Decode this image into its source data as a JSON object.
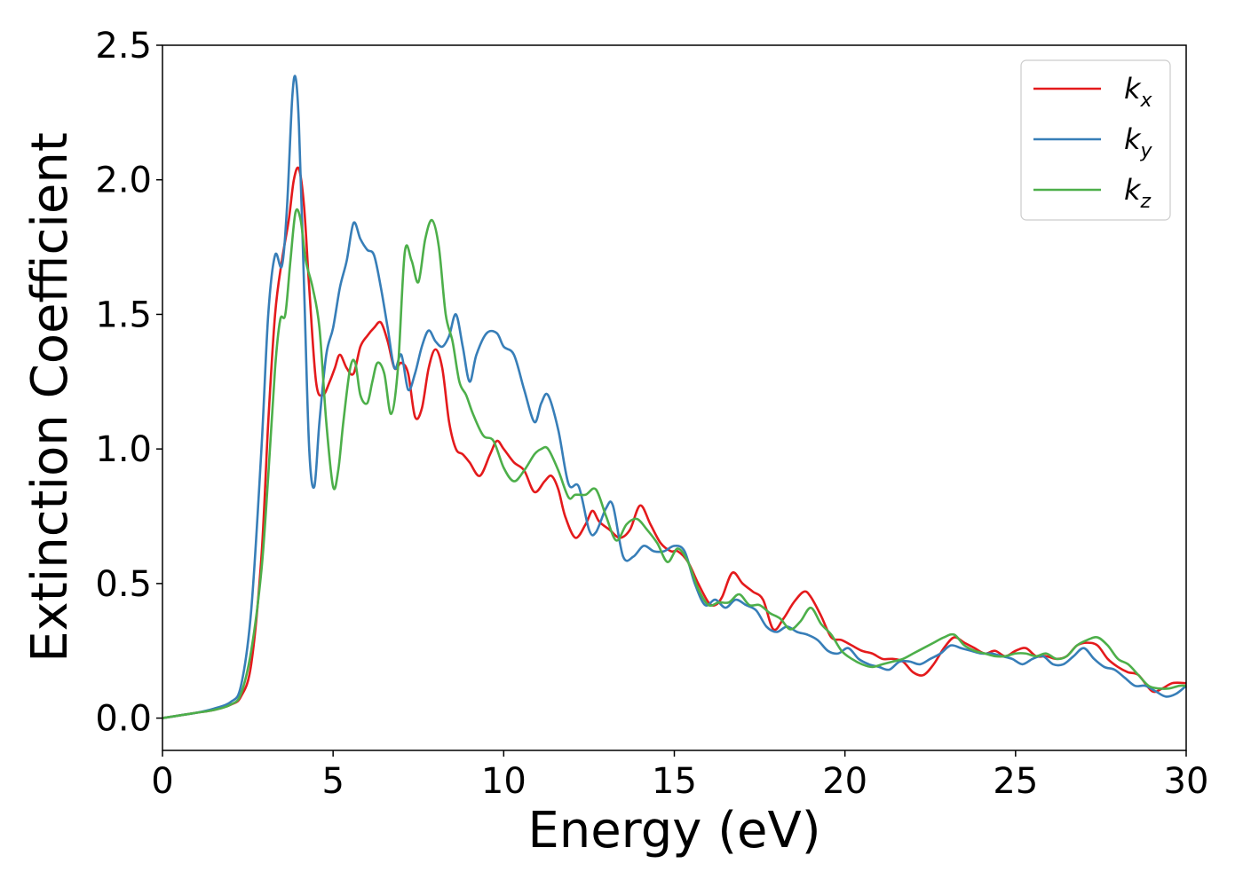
{
  "chart_data": {
    "type": "line",
    "xlabel": "Energy (eV)",
    "ylabel": "Extinction Coefficient",
    "xlim": [
      0,
      30
    ],
    "ylim": [
      -0.12,
      2.5
    ],
    "xticks": [
      0,
      5,
      10,
      15,
      20,
      25,
      30
    ],
    "yticks": [
      0.0,
      0.5,
      1.0,
      1.5,
      2.0,
      2.5
    ],
    "xtick_labels": [
      "0",
      "5",
      "10",
      "15",
      "20",
      "25",
      "30"
    ],
    "ytick_labels": [
      "0.0",
      "0.5",
      "1.0",
      "1.5",
      "2.0",
      "2.5"
    ],
    "grid": false,
    "legend_position": "top-right",
    "series": [
      {
        "name": "kx",
        "label_main": "k",
        "label_sub": "x",
        "color": "#e41a1c",
        "x": [
          0,
          0.5,
          1,
          1.5,
          2,
          2.3,
          2.6,
          2.9,
          3.1,
          3.3,
          3.5,
          3.7,
          3.85,
          4.0,
          4.15,
          4.3,
          4.5,
          4.7,
          4.9,
          5.05,
          5.2,
          5.4,
          5.6,
          5.8,
          6.0,
          6.2,
          6.4,
          6.6,
          6.8,
          7.0,
          7.2,
          7.4,
          7.6,
          7.8,
          8.0,
          8.2,
          8.4,
          8.6,
          8.8,
          9.0,
          9.3,
          9.6,
          9.8,
          10.0,
          10.3,
          10.6,
          10.9,
          11.2,
          11.4,
          11.6,
          11.8,
          12.1,
          12.4,
          12.6,
          12.8,
          13.1,
          13.4,
          13.7,
          14.0,
          14.3,
          14.6,
          14.9,
          15.1,
          15.4,
          15.7,
          16.0,
          16.2,
          16.4,
          16.7,
          17.0,
          17.3,
          17.6,
          17.9,
          18.2,
          18.5,
          18.8,
          19.0,
          19.3,
          19.6,
          19.9,
          20.2,
          20.5,
          20.8,
          21.1,
          21.4,
          21.7,
          22.0,
          22.3,
          22.6,
          22.9,
          23.2,
          23.5,
          23.8,
          24.1,
          24.4,
          24.7,
          25.0,
          25.3,
          25.6,
          25.9,
          26.2,
          26.5,
          26.8,
          27.1,
          27.4,
          27.7,
          28.0,
          28.3,
          28.6,
          29.0,
          29.3,
          29.6,
          30.0
        ],
        "y": [
          0.0,
          0.01,
          0.02,
          0.03,
          0.05,
          0.08,
          0.2,
          0.6,
          1.1,
          1.5,
          1.7,
          1.85,
          2.0,
          2.04,
          1.9,
          1.6,
          1.25,
          1.2,
          1.25,
          1.3,
          1.35,
          1.3,
          1.28,
          1.38,
          1.42,
          1.45,
          1.47,
          1.4,
          1.3,
          1.32,
          1.28,
          1.12,
          1.15,
          1.3,
          1.37,
          1.3,
          1.1,
          1.0,
          0.98,
          0.95,
          0.9,
          0.98,
          1.03,
          1.0,
          0.95,
          0.92,
          0.84,
          0.88,
          0.9,
          0.85,
          0.75,
          0.67,
          0.72,
          0.77,
          0.73,
          0.7,
          0.67,
          0.7,
          0.79,
          0.72,
          0.65,
          0.62,
          0.62,
          0.58,
          0.5,
          0.43,
          0.42,
          0.45,
          0.54,
          0.5,
          0.47,
          0.44,
          0.33,
          0.37,
          0.43,
          0.47,
          0.45,
          0.38,
          0.3,
          0.29,
          0.27,
          0.25,
          0.24,
          0.22,
          0.22,
          0.21,
          0.17,
          0.16,
          0.2,
          0.26,
          0.3,
          0.28,
          0.26,
          0.24,
          0.25,
          0.23,
          0.25,
          0.26,
          0.23,
          0.23,
          0.22,
          0.23,
          0.27,
          0.28,
          0.27,
          0.22,
          0.19,
          0.17,
          0.16,
          0.1,
          0.11,
          0.13,
          0.13
        ]
      },
      {
        "name": "ky",
        "label_main": "k",
        "label_sub": "y",
        "color": "#377eb8",
        "x": [
          0,
          0.5,
          1,
          1.5,
          2,
          2.3,
          2.6,
          2.9,
          3.1,
          3.3,
          3.5,
          3.65,
          3.8,
          3.9,
          4.0,
          4.15,
          4.3,
          4.45,
          4.6,
          4.8,
          5.0,
          5.2,
          5.4,
          5.6,
          5.8,
          6.0,
          6.2,
          6.4,
          6.6,
          6.8,
          7.0,
          7.2,
          7.4,
          7.6,
          7.8,
          8.0,
          8.2,
          8.4,
          8.6,
          8.8,
          9.0,
          9.2,
          9.5,
          9.8,
          10.0,
          10.3,
          10.6,
          10.9,
          11.1,
          11.3,
          11.6,
          11.9,
          12.2,
          12.5,
          12.7,
          13.0,
          13.2,
          13.5,
          13.8,
          14.1,
          14.4,
          14.7,
          15.0,
          15.3,
          15.6,
          15.9,
          16.2,
          16.5,
          16.8,
          17.1,
          17.4,
          17.7,
          18.0,
          18.3,
          18.6,
          18.9,
          19.2,
          19.5,
          19.8,
          20.1,
          20.4,
          20.7,
          21.0,
          21.3,
          21.6,
          21.9,
          22.2,
          22.5,
          22.8,
          23.1,
          23.4,
          23.7,
          24.0,
          24.3,
          24.6,
          24.9,
          25.2,
          25.5,
          25.8,
          26.1,
          26.4,
          26.7,
          27.0,
          27.3,
          27.6,
          27.9,
          28.2,
          28.5,
          28.8,
          29.1,
          29.4,
          29.7,
          30.0
        ],
        "y": [
          0.0,
          0.01,
          0.02,
          0.035,
          0.06,
          0.12,
          0.4,
          1.0,
          1.5,
          1.72,
          1.68,
          1.9,
          2.3,
          2.38,
          2.2,
          1.6,
          1.0,
          0.86,
          1.1,
          1.35,
          1.45,
          1.6,
          1.7,
          1.84,
          1.78,
          1.74,
          1.72,
          1.6,
          1.45,
          1.3,
          1.35,
          1.22,
          1.28,
          1.38,
          1.44,
          1.4,
          1.38,
          1.42,
          1.5,
          1.38,
          1.25,
          1.35,
          1.43,
          1.43,
          1.38,
          1.35,
          1.22,
          1.1,
          1.17,
          1.2,
          1.07,
          0.87,
          0.86,
          0.7,
          0.69,
          0.78,
          0.79,
          0.6,
          0.6,
          0.64,
          0.62,
          0.62,
          0.64,
          0.62,
          0.5,
          0.42,
          0.44,
          0.41,
          0.44,
          0.42,
          0.4,
          0.34,
          0.32,
          0.34,
          0.32,
          0.31,
          0.29,
          0.25,
          0.24,
          0.26,
          0.22,
          0.2,
          0.19,
          0.18,
          0.21,
          0.21,
          0.2,
          0.22,
          0.24,
          0.27,
          0.26,
          0.25,
          0.24,
          0.24,
          0.23,
          0.22,
          0.2,
          0.22,
          0.23,
          0.2,
          0.2,
          0.23,
          0.26,
          0.22,
          0.19,
          0.18,
          0.15,
          0.12,
          0.12,
          0.1,
          0.08,
          0.09,
          0.12
        ]
      },
      {
        "name": "kz",
        "label_main": "k",
        "label_sub": "z",
        "color": "#4daf4a",
        "x": [
          0,
          0.5,
          1,
          1.5,
          2,
          2.3,
          2.6,
          2.9,
          3.1,
          3.3,
          3.45,
          3.6,
          3.75,
          3.9,
          4.05,
          4.2,
          4.4,
          4.6,
          4.8,
          5.0,
          5.15,
          5.3,
          5.5,
          5.65,
          5.8,
          6.0,
          6.15,
          6.3,
          6.5,
          6.7,
          6.9,
          7.1,
          7.3,
          7.5,
          7.7,
          7.9,
          8.1,
          8.3,
          8.5,
          8.7,
          8.9,
          9.1,
          9.4,
          9.7,
          10.0,
          10.3,
          10.6,
          10.9,
          11.1,
          11.3,
          11.6,
          11.9,
          12.1,
          12.4,
          12.7,
          13.0,
          13.3,
          13.6,
          13.9,
          14.2,
          14.5,
          14.8,
          15.1,
          15.4,
          15.7,
          16.0,
          16.3,
          16.6,
          16.9,
          17.2,
          17.5,
          17.8,
          18.1,
          18.4,
          18.7,
          19.0,
          19.3,
          19.6,
          19.9,
          20.2,
          20.5,
          20.8,
          21.1,
          21.4,
          21.7,
          22.0,
          22.3,
          22.6,
          22.9,
          23.2,
          23.5,
          23.8,
          24.1,
          24.4,
          24.7,
          25.0,
          25.3,
          25.6,
          25.9,
          26.2,
          26.5,
          26.8,
          27.1,
          27.4,
          27.7,
          28.0,
          28.3,
          28.6,
          28.9,
          29.2,
          29.5,
          29.8,
          30.0
        ],
        "y": [
          0.0,
          0.01,
          0.02,
          0.03,
          0.05,
          0.09,
          0.25,
          0.55,
          0.9,
          1.3,
          1.48,
          1.5,
          1.7,
          1.88,
          1.85,
          1.7,
          1.6,
          1.45,
          1.1,
          0.86,
          0.92,
          1.1,
          1.3,
          1.32,
          1.2,
          1.17,
          1.25,
          1.32,
          1.28,
          1.13,
          1.3,
          1.73,
          1.7,
          1.62,
          1.78,
          1.85,
          1.75,
          1.5,
          1.4,
          1.25,
          1.2,
          1.13,
          1.05,
          1.03,
          0.93,
          0.88,
          0.92,
          0.98,
          1.0,
          1.0,
          0.92,
          0.82,
          0.83,
          0.83,
          0.85,
          0.75,
          0.66,
          0.72,
          0.74,
          0.7,
          0.65,
          0.58,
          0.63,
          0.58,
          0.48,
          0.42,
          0.43,
          0.43,
          0.46,
          0.42,
          0.42,
          0.39,
          0.37,
          0.33,
          0.36,
          0.41,
          0.35,
          0.31,
          0.25,
          0.22,
          0.2,
          0.19,
          0.2,
          0.21,
          0.22,
          0.24,
          0.26,
          0.28,
          0.3,
          0.31,
          0.27,
          0.25,
          0.24,
          0.23,
          0.23,
          0.24,
          0.24,
          0.23,
          0.24,
          0.22,
          0.23,
          0.27,
          0.29,
          0.3,
          0.27,
          0.22,
          0.2,
          0.16,
          0.12,
          0.11,
          0.11,
          0.12,
          0.12
        ]
      }
    ]
  }
}
